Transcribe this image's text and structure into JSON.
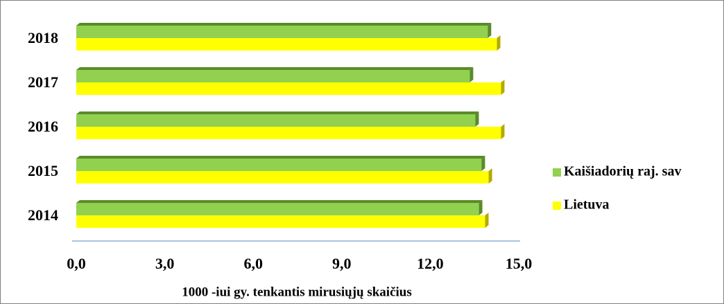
{
  "chart_data": {
    "type": "bar",
    "orientation": "horizontal",
    "x_label": "1000 -iui gy. tenkantis mirusiųjų skaičius",
    "categories": [
      "2014",
      "2015",
      "2016",
      "2017",
      "2018"
    ],
    "series": [
      {
        "name": "Kaišiadorių raj. sav",
        "color": "#92d050",
        "values": [
          13.65,
          13.74,
          13.53,
          13.34,
          13.95
        ]
      },
      {
        "name": "Lietuva",
        "color": "#ffff00",
        "values": [
          13.86,
          13.98,
          14.4,
          14.4,
          14.26
        ]
      }
    ],
    "xlim": [
      0,
      15
    ],
    "xticks": [
      {
        "value": 0,
        "label": "0,0"
      },
      {
        "value": 3,
        "label": "3,0"
      },
      {
        "value": 6,
        "label": "6,0"
      },
      {
        "value": 9,
        "label": "9,0"
      },
      {
        "value": 12,
        "label": "12,0"
      },
      {
        "value": 15,
        "label": "15,0"
      }
    ],
    "legend": "right"
  }
}
